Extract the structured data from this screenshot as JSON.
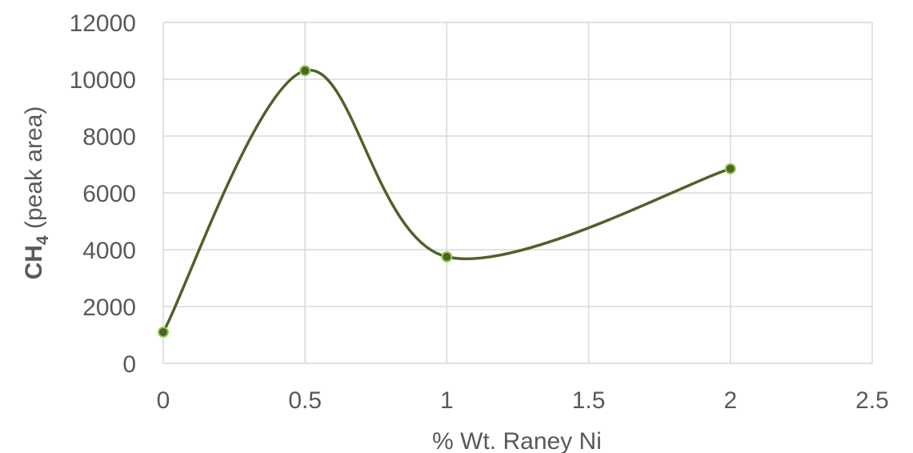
{
  "chart_data": {
    "type": "scatter",
    "smoothed": true,
    "title": "",
    "xlabel": "% Wt. Raney Ni",
    "ylabel": {
      "main": "CH",
      "subscript": "4",
      "suffix": " (peak area)"
    },
    "xlim": [
      0,
      2.5
    ],
    "ylim": [
      0,
      12000
    ],
    "x_ticks": [
      0,
      0.5,
      1,
      1.5,
      2,
      2.5
    ],
    "x_tick_labels": [
      "0",
      "0.5",
      "1",
      "1.5",
      "2",
      "2.5"
    ],
    "y_ticks": [
      0,
      2000,
      4000,
      6000,
      8000,
      10000,
      12000
    ],
    "y_tick_labels": [
      "0",
      "2000",
      "4000",
      "6000",
      "8000",
      "10000",
      "12000"
    ],
    "grid": true,
    "legend": false,
    "series": [
      {
        "x": [
          0,
          0.5,
          1,
          2
        ],
        "y": [
          1100,
          10300,
          3750,
          6850
        ]
      }
    ],
    "colors": {
      "line": "#4f6228",
      "marker_fill": "#4f6228",
      "marker_stroke": "#92d050",
      "grid": "#d9d9d9",
      "text": "#595959"
    }
  }
}
